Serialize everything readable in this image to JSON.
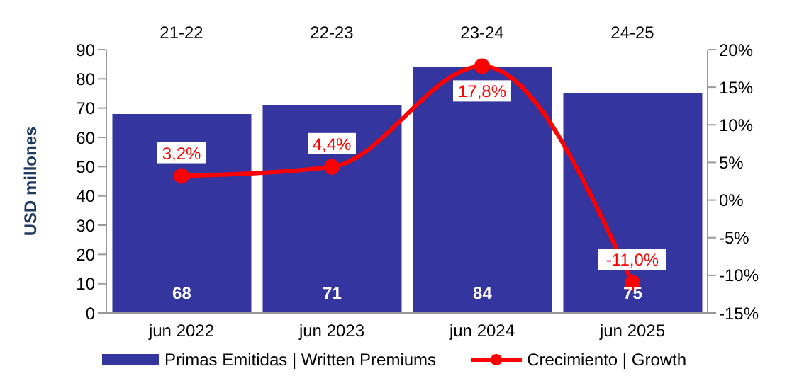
{
  "chart_data": {
    "type": "bar",
    "ylabel": "USD millones",
    "categories": [
      "jun 2022",
      "jun 2023",
      "jun 2024",
      "jun 2025"
    ],
    "series": [
      {
        "name": "Primas Emitidas | Written Premiums",
        "color": "#3535a0",
        "values": [
          68,
          71,
          84,
          75
        ],
        "value_labels": [
          "68",
          "71",
          "84",
          "75"
        ]
      },
      {
        "name": "Crecimiento | Growth",
        "type": "line",
        "axis": "y2",
        "color": "#ff0000",
        "values": [
          3.2,
          4.4,
          17.8,
          -11.0
        ],
        "value_labels": [
          "3,2%",
          "4,4%",
          "17,8%",
          "-11,0%"
        ]
      }
    ],
    "ylim": [
      0,
      90
    ],
    "yticks": [
      0,
      10,
      20,
      30,
      40,
      50,
      60,
      70,
      80,
      90
    ],
    "y2lim": [
      -15,
      20
    ],
    "y2ticks": [
      {
        "value": -15,
        "label": "-15%"
      },
      {
        "value": -10,
        "label": "-10%"
      },
      {
        "value": -5,
        "label": "-5%"
      },
      {
        "value": 0,
        "label": "0%"
      },
      {
        "value": 5,
        "label": "5%"
      },
      {
        "value": 10,
        "label": "10%"
      },
      {
        "value": 15,
        "label": "15%"
      },
      {
        "value": 20,
        "label": "20%"
      }
    ],
    "annotations": [
      "21-22",
      "22-23",
      "23-24",
      "24-25"
    ],
    "legend": "bottom",
    "marker": "circle",
    "line_style": "solid",
    "grid": false
  }
}
